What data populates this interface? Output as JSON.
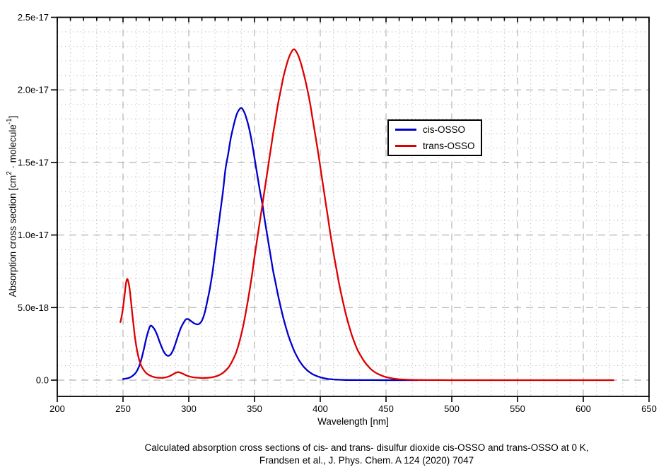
{
  "figure": {
    "caption_line1": "Calculated absorption cross sections of cis- and trans- disulfur dioxide cis-OSSO and trans-OSSO at 0 K,",
    "caption_line2": "Frandsen et al., J. Phys. Chem. A 124 (2020) 7047"
  },
  "chart_data": {
    "type": "line",
    "title": "",
    "xlabel": "Wavelength [nm]",
    "ylabel": "Absorption cross section [cm2 . molecule-1]",
    "ylabel_parts": {
      "pre": "Absorption cross section [cm",
      "sup1": "2",
      "mid": " · molecule",
      "sup2": "-1",
      "post": "]"
    },
    "xlim": [
      200,
      650
    ],
    "ylim": [
      0,
      2.5e-17
    ],
    "x_major_tick_values": [
      200,
      250,
      300,
      350,
      400,
      450,
      500,
      550,
      600,
      650
    ],
    "x_tick_labels": [
      "200",
      "250",
      "300",
      "350",
      "400",
      "450",
      "500",
      "550",
      "600",
      "650"
    ],
    "x_minor_step_nm": 10,
    "y_major_tick_values_1e18": [
      0,
      5,
      10,
      15,
      20,
      25
    ],
    "y_tick_labels": [
      "0.0",
      "5.0e-18",
      "1.0e-17",
      "1.5e-17",
      "2.0e-17",
      "2.5e-17"
    ],
    "y_minor_step_1e18": 1,
    "y_unit_scale": 1e-18,
    "grid": {
      "major": "dashed-gray",
      "minor": "dotted-gray"
    },
    "legend": {
      "position": "upper-right-of-center",
      "entries": [
        {
          "label": "cis-OSSO",
          "color": "#0000cd"
        },
        {
          "label": "trans-OSSO",
          "color": "#dd0000"
        }
      ]
    },
    "series": [
      {
        "name": "cis-OSSO",
        "color": "#0000cd",
        "points_nm_sigma1e18": [
          [
            250,
            0.08
          ],
          [
            252,
            0.1
          ],
          [
            254,
            0.14
          ],
          [
            256,
            0.22
          ],
          [
            258,
            0.35
          ],
          [
            260,
            0.55
          ],
          [
            262,
            0.9
          ],
          [
            264,
            1.45
          ],
          [
            266,
            2.2
          ],
          [
            268,
            3.0
          ],
          [
            270,
            3.6
          ],
          [
            271,
            3.75
          ],
          [
            272,
            3.72
          ],
          [
            274,
            3.5
          ],
          [
            276,
            3.1
          ],
          [
            278,
            2.6
          ],
          [
            280,
            2.15
          ],
          [
            282,
            1.82
          ],
          [
            284,
            1.68
          ],
          [
            286,
            1.75
          ],
          [
            288,
            2.05
          ],
          [
            290,
            2.55
          ],
          [
            292,
            3.1
          ],
          [
            294,
            3.6
          ],
          [
            296,
            3.95
          ],
          [
            298,
            4.2
          ],
          [
            300,
            4.18
          ],
          [
            302,
            4.05
          ],
          [
            304,
            3.92
          ],
          [
            306,
            3.85
          ],
          [
            308,
            3.88
          ],
          [
            310,
            4.1
          ],
          [
            312,
            4.6
          ],
          [
            314,
            5.4
          ],
          [
            316,
            6.3
          ],
          [
            318,
            7.4
          ],
          [
            320,
            8.8
          ],
          [
            322,
            10.2
          ],
          [
            324,
            11.6
          ],
          [
            326,
            13.0
          ],
          [
            328,
            14.6
          ],
          [
            330,
            15.6
          ],
          [
            332,
            16.7
          ],
          [
            334,
            17.5
          ],
          [
            336,
            18.2
          ],
          [
            338,
            18.6
          ],
          [
            340,
            18.75
          ],
          [
            342,
            18.5
          ],
          [
            344,
            18.0
          ],
          [
            346,
            17.3
          ],
          [
            348,
            16.4
          ],
          [
            350,
            15.3
          ],
          [
            352,
            14.2
          ],
          [
            354,
            13.1
          ],
          [
            356,
            12.1
          ],
          [
            358,
            10.9
          ],
          [
            360,
            9.8
          ],
          [
            362,
            8.7
          ],
          [
            364,
            7.6
          ],
          [
            366,
            6.7
          ],
          [
            368,
            5.8
          ],
          [
            370,
            5.0
          ],
          [
            372,
            4.25
          ],
          [
            374,
            3.6
          ],
          [
            376,
            3.0
          ],
          [
            378,
            2.5
          ],
          [
            380,
            2.05
          ],
          [
            382,
            1.68
          ],
          [
            384,
            1.35
          ],
          [
            386,
            1.08
          ],
          [
            388,
            0.86
          ],
          [
            390,
            0.68
          ],
          [
            392,
            0.54
          ],
          [
            394,
            0.42
          ],
          [
            396,
            0.33
          ],
          [
            398,
            0.26
          ],
          [
            400,
            0.2
          ],
          [
            403,
            0.13
          ],
          [
            406,
            0.08
          ],
          [
            410,
            0.05
          ],
          [
            414,
            0.03
          ],
          [
            418,
            0.015
          ],
          [
            422,
            0.01
          ],
          [
            430,
            0.005
          ],
          [
            440,
            0.003
          ],
          [
            450,
            0.002
          ],
          [
            460,
            0.001
          ],
          [
            470,
            0.001
          ],
          [
            474,
            0.001
          ]
        ]
      },
      {
        "name": "trans-OSSO",
        "color": "#dd0000",
        "points_nm_sigma1e18": [
          [
            248,
            4.0
          ],
          [
            249,
            4.4
          ],
          [
            250,
            5.0
          ],
          [
            251,
            5.7
          ],
          [
            252,
            6.5
          ],
          [
            253,
            6.95
          ],
          [
            254,
            6.8
          ],
          [
            255,
            6.3
          ],
          [
            256,
            5.5
          ],
          [
            257,
            4.6
          ],
          [
            258,
            3.8
          ],
          [
            259,
            3.0
          ],
          [
            260,
            2.4
          ],
          [
            261,
            1.9
          ],
          [
            262,
            1.5
          ],
          [
            263,
            1.2
          ],
          [
            264,
            0.97
          ],
          [
            266,
            0.66
          ],
          [
            268,
            0.46
          ],
          [
            270,
            0.34
          ],
          [
            272,
            0.26
          ],
          [
            274,
            0.2
          ],
          [
            276,
            0.17
          ],
          [
            278,
            0.16
          ],
          [
            280,
            0.16
          ],
          [
            282,
            0.18
          ],
          [
            284,
            0.23
          ],
          [
            286,
            0.3
          ],
          [
            288,
            0.4
          ],
          [
            290,
            0.5
          ],
          [
            292,
            0.55
          ],
          [
            294,
            0.5
          ],
          [
            296,
            0.42
          ],
          [
            298,
            0.33
          ],
          [
            300,
            0.27
          ],
          [
            303,
            0.2
          ],
          [
            306,
            0.17
          ],
          [
            310,
            0.15
          ],
          [
            314,
            0.16
          ],
          [
            318,
            0.2
          ],
          [
            322,
            0.3
          ],
          [
            326,
            0.5
          ],
          [
            330,
            0.85
          ],
          [
            333,
            1.3
          ],
          [
            336,
            1.9
          ],
          [
            339,
            2.8
          ],
          [
            342,
            4.0
          ],
          [
            345,
            5.5
          ],
          [
            348,
            7.2
          ],
          [
            350,
            8.5
          ],
          [
            352,
            9.7
          ],
          [
            354,
            10.9
          ],
          [
            356,
            12.1
          ],
          [
            358,
            13.3
          ],
          [
            360,
            14.5
          ],
          [
            362,
            15.7
          ],
          [
            364,
            16.9
          ],
          [
            366,
            18.0
          ],
          [
            368,
            19.1
          ],
          [
            370,
            20.0
          ],
          [
            372,
            20.9
          ],
          [
            374,
            21.6
          ],
          [
            376,
            22.2
          ],
          [
            378,
            22.6
          ],
          [
            380,
            22.8
          ],
          [
            382,
            22.6
          ],
          [
            384,
            22.2
          ],
          [
            386,
            21.6
          ],
          [
            388,
            20.9
          ],
          [
            390,
            20.1
          ],
          [
            392,
            19.2
          ],
          [
            394,
            18.1
          ],
          [
            396,
            17.0
          ],
          [
            398,
            15.9
          ],
          [
            400,
            14.7
          ],
          [
            402,
            13.5
          ],
          [
            404,
            12.3
          ],
          [
            406,
            11.1
          ],
          [
            408,
            9.9
          ],
          [
            410,
            8.8
          ],
          [
            412,
            7.8
          ],
          [
            414,
            6.8
          ],
          [
            416,
            5.9
          ],
          [
            418,
            5.1
          ],
          [
            420,
            4.35
          ],
          [
            422,
            3.7
          ],
          [
            424,
            3.1
          ],
          [
            426,
            2.6
          ],
          [
            428,
            2.15
          ],
          [
            430,
            1.8
          ],
          [
            433,
            1.35
          ],
          [
            436,
            1.0
          ],
          [
            439,
            0.72
          ],
          [
            442,
            0.52
          ],
          [
            445,
            0.38
          ],
          [
            448,
            0.27
          ],
          [
            451,
            0.19
          ],
          [
            454,
            0.13
          ],
          [
            457,
            0.09
          ],
          [
            460,
            0.06
          ],
          [
            464,
            0.04
          ],
          [
            468,
            0.025
          ],
          [
            472,
            0.015
          ],
          [
            476,
            0.01
          ],
          [
            480,
            0.007
          ],
          [
            490,
            0.004
          ],
          [
            500,
            0.002
          ],
          [
            520,
            0.001
          ],
          [
            550,
            0.001
          ],
          [
            580,
            0.001
          ],
          [
            600,
            0.001
          ],
          [
            623,
            0.001
          ]
        ]
      }
    ]
  },
  "style_colors": {
    "frame": "#000000",
    "major_grid": "#b3b3b3",
    "minor_grid": "#c0c0c0",
    "background": "#ffffff"
  }
}
